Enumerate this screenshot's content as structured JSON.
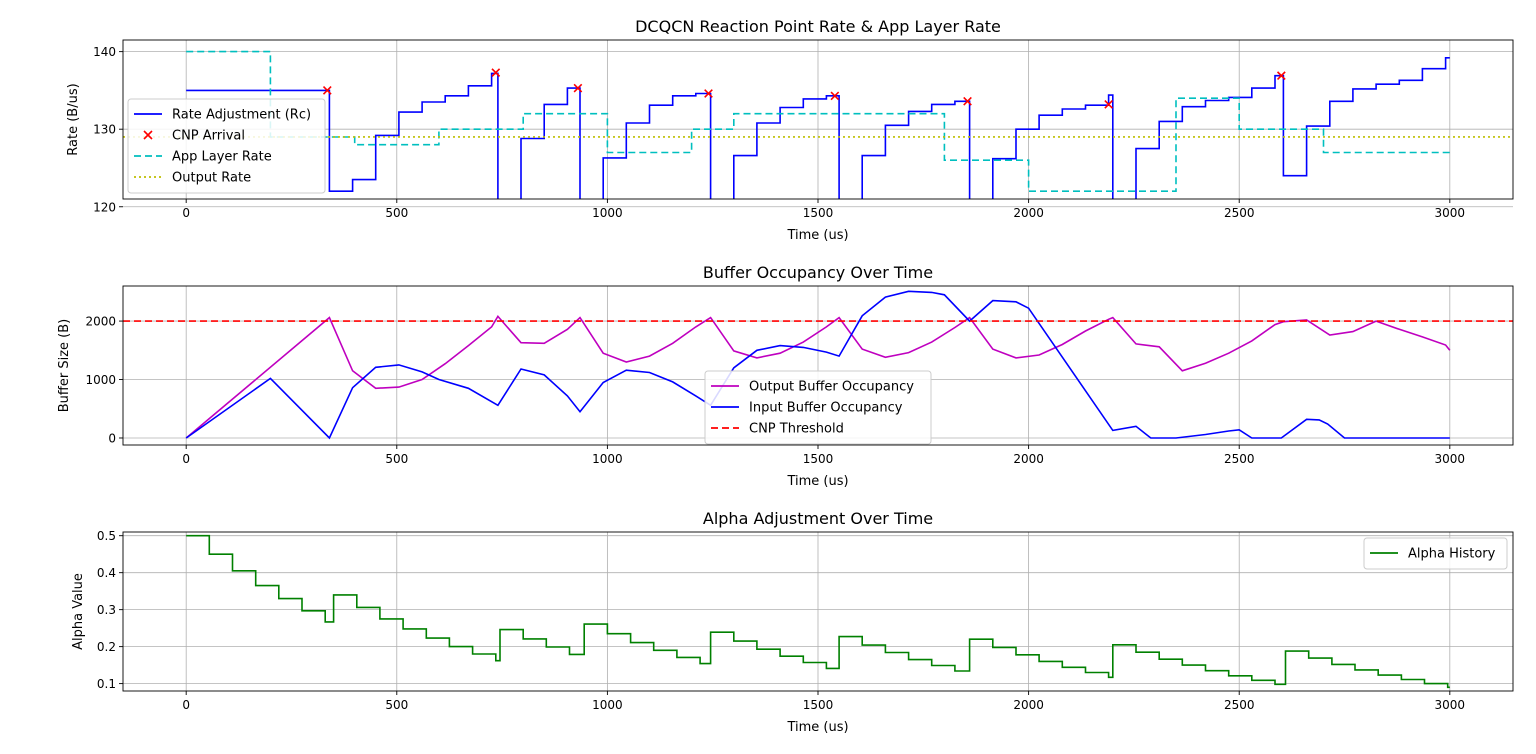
{
  "chart_data": [
    {
      "type": "line",
      "title": "DCQCN Reaction Point Rate & App Layer Rate",
      "xlabel": "Time (us)",
      "ylabel": "Rate (B/us)",
      "xlim": [
        -150,
        3150
      ],
      "ylim": [
        121,
        141.5
      ],
      "xticks": [
        0,
        500,
        1000,
        1500,
        2000,
        2500,
        3000
      ],
      "yticks": [
        120,
        130,
        140
      ],
      "grid": true,
      "legend_position": "center-left",
      "series": [
        {
          "name": "Rate Adjustment (Rc)",
          "style": "step",
          "color": "#0000ff",
          "x": [
            0,
            340,
            340,
            395,
            395,
            450,
            450,
            505,
            505,
            560,
            560,
            615,
            615,
            670,
            670,
            725,
            725,
            740,
            740,
            795,
            795,
            850,
            850,
            905,
            905,
            935,
            935,
            990,
            990,
            1045,
            1045,
            1100,
            1100,
            1155,
            1155,
            1210,
            1210,
            1245,
            1245,
            1300,
            1300,
            1355,
            1355,
            1410,
            1410,
            1465,
            1465,
            1520,
            1520,
            1550,
            1550,
            1605,
            1605,
            1660,
            1660,
            1715,
            1715,
            1770,
            1770,
            1825,
            1825,
            1860,
            1860,
            1915,
            1915,
            1970,
            1970,
            2025,
            2025,
            2080,
            2080,
            2135,
            2135,
            2190,
            2190,
            2200,
            2200,
            2255,
            2255,
            2310,
            2310,
            2365,
            2365,
            2420,
            2420,
            2475,
            2475,
            2530,
            2530,
            2585,
            2585,
            2605,
            2605,
            2660,
            2660,
            2715,
            2715,
            2770,
            2770,
            2825,
            2825,
            2880,
            2880,
            2935,
            2935,
            2990,
            2990,
            3000
          ],
          "y": [
            135,
            135,
            122,
            122,
            123.5,
            123.5,
            129.2,
            129.2,
            132.2,
            132.2,
            133.5,
            133.5,
            134.3,
            134.3,
            135.6,
            135.6,
            137.2,
            137.2,
            120.5,
            120.5,
            128.8,
            128.8,
            133.2,
            133.2,
            135.3,
            135.3,
            117.6,
            117.6,
            126.3,
            126.3,
            130.8,
            130.8,
            133.1,
            133.1,
            134.3,
            134.3,
            134.6,
            134.6,
            118.6,
            118.6,
            126.6,
            126.6,
            130.8,
            130.8,
            132.8,
            132.8,
            133.9,
            133.9,
            134.3,
            134.3,
            119,
            119,
            126.6,
            126.6,
            130.5,
            130.5,
            132.3,
            132.3,
            133.2,
            133.2,
            133.6,
            133.6,
            119,
            119,
            126.2,
            126.2,
            130,
            130,
            131.8,
            131.8,
            132.6,
            132.6,
            133.1,
            133.1,
            134.4,
            134.4,
            120.7,
            120.7,
            127.5,
            127.5,
            131,
            131,
            132.9,
            132.9,
            133.7,
            133.7,
            134.1,
            134.1,
            135.3,
            135.3,
            136.9,
            136.9,
            124,
            124,
            130.4,
            130.4,
            133.6,
            133.6,
            135.2,
            135.2,
            135.8,
            135.8,
            136.3,
            136.3,
            137.8,
            137.8,
            139.2,
            139.2
          ]
        },
        {
          "name": "CNP Arrival",
          "style": "scatter",
          "marker": "x",
          "color": "#ff0000",
          "x": [
            335,
            735,
            930,
            1240,
            1540,
            1855,
            2190,
            2600
          ],
          "y": [
            135,
            137.3,
            135.3,
            134.6,
            134.3,
            133.6,
            133.2,
            136.9
          ]
        },
        {
          "name": "App Layer Rate",
          "style": "dashed",
          "color": "#00bfbf",
          "x": [
            0,
            200,
            200,
            400,
            400,
            600,
            600,
            800,
            800,
            1000,
            1000,
            1200,
            1200,
            1300,
            1300,
            1800,
            1800,
            2000,
            2000,
            2350,
            2350,
            2500,
            2500,
            2700,
            2700,
            3000
          ],
          "y": [
            140,
            140,
            129,
            129,
            128,
            128,
            130,
            130,
            132,
            132,
            127,
            127,
            130,
            130,
            132,
            132,
            126,
            126,
            122,
            122,
            134,
            134,
            130,
            130,
            127,
            127
          ]
        },
        {
          "name": "Output Rate",
          "style": "dotted",
          "color": "#bfbf00",
          "constant_y": 129
        }
      ]
    },
    {
      "type": "line",
      "title": "Buffer Occupancy Over Time",
      "xlabel": "Time (us)",
      "ylabel": "Buffer Size (B)",
      "xlim": [
        -150,
        3150
      ],
      "ylim": [
        -120,
        2600
      ],
      "xticks": [
        0,
        500,
        1000,
        1500,
        2000,
        2500,
        3000
      ],
      "yticks": [
        0,
        1000,
        2000
      ],
      "grid": true,
      "legend_position": "lower-center",
      "series": [
        {
          "name": "Output Buffer Occupancy",
          "color": "#bf00bf",
          "x": [
            0,
            340,
            395,
            450,
            505,
            560,
            615,
            670,
            725,
            740,
            795,
            850,
            905,
            935,
            990,
            1045,
            1100,
            1155,
            1210,
            1245,
            1300,
            1355,
            1410,
            1465,
            1520,
            1550,
            1605,
            1660,
            1715,
            1770,
            1825,
            1860,
            1915,
            1970,
            2025,
            2080,
            2135,
            2190,
            2200,
            2255,
            2310,
            2365,
            2420,
            2475,
            2530,
            2585,
            2605,
            2660,
            2715,
            2770,
            2825,
            2880,
            2935,
            2990,
            3000
          ],
          "y": [
            0,
            2060,
            1150,
            850,
            870,
            1000,
            1270,
            1580,
            1900,
            2080,
            1630,
            1620,
            1860,
            2060,
            1450,
            1300,
            1400,
            1620,
            1900,
            2060,
            1490,
            1370,
            1450,
            1640,
            1900,
            2060,
            1520,
            1380,
            1460,
            1640,
            1890,
            2060,
            1520,
            1370,
            1420,
            1600,
            1830,
            2030,
            2060,
            1610,
            1560,
            1150,
            1280,
            1450,
            1660,
            1940,
            1990,
            2020,
            1760,
            1820,
            2000,
            1860,
            1730,
            1590,
            1500
          ]
        },
        {
          "name": "Input Buffer Occupancy",
          "color": "#0000ff",
          "x": [
            0,
            200,
            340,
            395,
            450,
            505,
            560,
            600,
            670,
            740,
            795,
            850,
            905,
            935,
            990,
            1045,
            1100,
            1155,
            1210,
            1245,
            1300,
            1355,
            1410,
            1465,
            1520,
            1550,
            1605,
            1660,
            1715,
            1770,
            1800,
            1860,
            1915,
            1970,
            2000,
            2200,
            2255,
            2290,
            2350,
            2420,
            2475,
            2500,
            2530,
            2600,
            2660,
            2690,
            2710,
            2750,
            3000
          ],
          "y": [
            0,
            1020,
            0,
            860,
            1210,
            1250,
            1130,
            1000,
            850,
            560,
            1180,
            1080,
            720,
            450,
            950,
            1160,
            1120,
            960,
            720,
            560,
            1200,
            1500,
            1580,
            1550,
            1470,
            1400,
            2090,
            2410,
            2510,
            2490,
            2450,
            2000,
            2350,
            2330,
            2220,
            130,
            200,
            0,
            0,
            60,
            120,
            140,
            0,
            0,
            320,
            310,
            240,
            0,
            0
          ]
        },
        {
          "name": "CNP Threshold",
          "style": "dashed",
          "color": "#ff0000",
          "constant_y": 2000
        }
      ]
    },
    {
      "type": "line",
      "title": "Alpha Adjustment Over Time",
      "xlabel": "Time (us)",
      "ylabel": "Alpha Value",
      "xlim": [
        -150,
        3150
      ],
      "ylim": [
        0.08,
        0.51
      ],
      "xticks": [
        0,
        500,
        1000,
        1500,
        2000,
        2500,
        3000
      ],
      "yticks": [
        0.1,
        0.2,
        0.3,
        0.4,
        0.5
      ],
      "grid": true,
      "legend_position": "top-right",
      "series": [
        {
          "name": "Alpha History",
          "style": "step",
          "color": "#008000",
          "x": [
            0,
            55,
            55,
            110,
            110,
            165,
            165,
            220,
            220,
            275,
            275,
            330,
            330,
            340,
            340,
            350,
            350,
            405,
            405,
            460,
            460,
            515,
            515,
            570,
            570,
            625,
            625,
            680,
            680,
            735,
            735,
            745,
            745,
            800,
            800,
            855,
            855,
            910,
            910,
            945,
            945,
            1000,
            1000,
            1055,
            1055,
            1110,
            1110,
            1165,
            1165,
            1220,
            1220,
            1245,
            1245,
            1300,
            1300,
            1355,
            1355,
            1410,
            1410,
            1465,
            1465,
            1520,
            1520,
            1550,
            1550,
            1605,
            1605,
            1660,
            1660,
            1715,
            1715,
            1770,
            1770,
            1825,
            1825,
            1860,
            1860,
            1915,
            1915,
            1970,
            1970,
            2025,
            2025,
            2080,
            2080,
            2135,
            2135,
            2190,
            2190,
            2200,
            2200,
            2255,
            2255,
            2310,
            2310,
            2365,
            2365,
            2420,
            2420,
            2475,
            2475,
            2530,
            2530,
            2585,
            2585,
            2610,
            2610,
            2665,
            2665,
            2720,
            2720,
            2775,
            2775,
            2830,
            2830,
            2885,
            2885,
            2940,
            2940,
            2995,
            2995,
            3000
          ],
          "y": [
            0.5,
            0.5,
            0.45,
            0.45,
            0.405,
            0.405,
            0.365,
            0.365,
            0.33,
            0.33,
            0.297,
            0.297,
            0.267,
            0.267,
            0.267,
            0.267,
            0.34,
            0.34,
            0.306,
            0.306,
            0.275,
            0.275,
            0.248,
            0.248,
            0.223,
            0.223,
            0.2,
            0.2,
            0.18,
            0.18,
            0.162,
            0.162,
            0.246,
            0.246,
            0.221,
            0.221,
            0.199,
            0.199,
            0.179,
            0.179,
            0.261,
            0.261,
            0.235,
            0.235,
            0.211,
            0.211,
            0.19,
            0.19,
            0.171,
            0.171,
            0.154,
            0.154,
            0.239,
            0.239,
            0.215,
            0.215,
            0.193,
            0.193,
            0.174,
            0.174,
            0.157,
            0.157,
            0.141,
            0.141,
            0.227,
            0.227,
            0.204,
            0.204,
            0.184,
            0.184,
            0.165,
            0.165,
            0.149,
            0.149,
            0.134,
            0.134,
            0.22,
            0.22,
            0.198,
            0.198,
            0.178,
            0.178,
            0.16,
            0.16,
            0.144,
            0.144,
            0.13,
            0.13,
            0.117,
            0.117,
            0.205,
            0.205,
            0.185,
            0.185,
            0.166,
            0.166,
            0.15,
            0.15,
            0.135,
            0.135,
            0.121,
            0.121,
            0.109,
            0.109,
            0.098,
            0.098,
            0.188,
            0.188,
            0.169,
            0.169,
            0.152,
            0.152,
            0.137,
            0.137,
            0.123,
            0.123,
            0.111,
            0.111,
            0.1,
            0.1,
            0.09,
            0.09
          ]
        }
      ]
    }
  ]
}
